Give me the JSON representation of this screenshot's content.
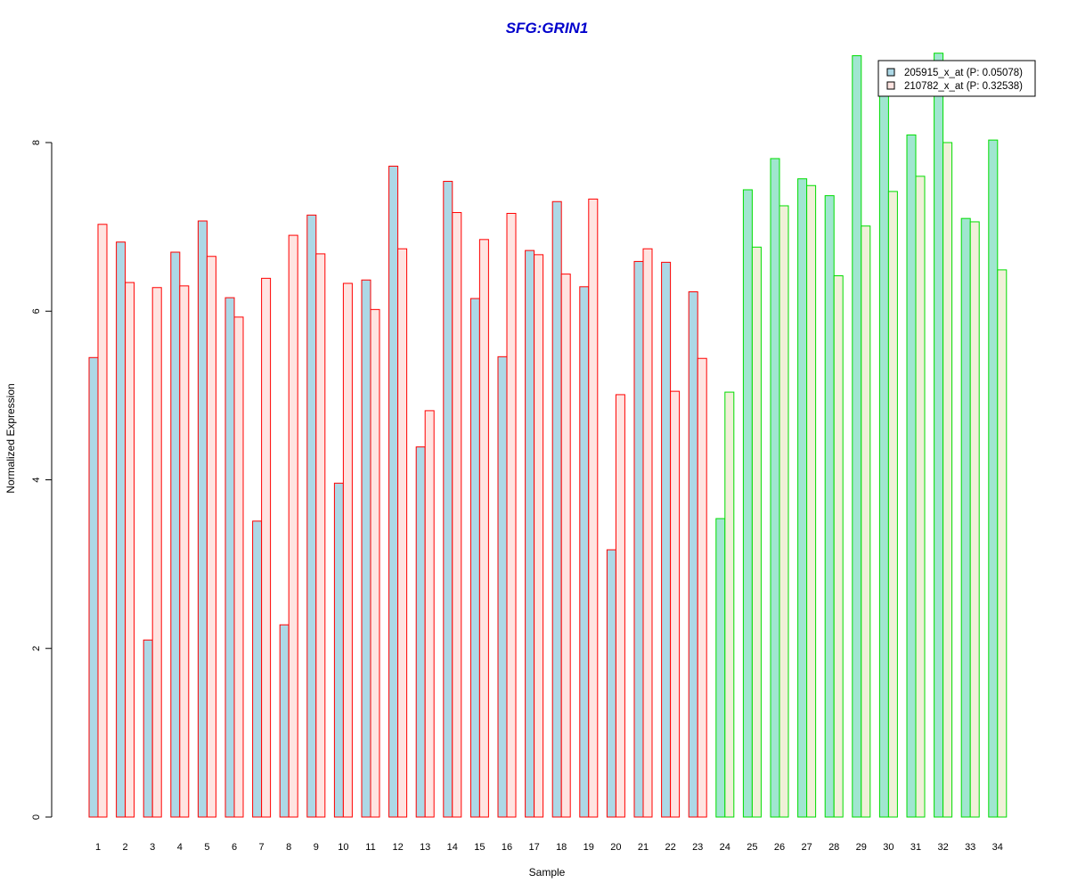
{
  "chart_data": {
    "type": "bar",
    "title": "SFG:GRIN1",
    "xlabel": "Sample",
    "ylabel": "Normalized Expression",
    "ylim": [
      0,
      9.2
    ],
    "yticks": [
      "0",
      "2",
      "4",
      "6",
      "8"
    ],
    "categories": [
      "1",
      "2",
      "3",
      "4",
      "5",
      "6",
      "7",
      "8",
      "9",
      "10",
      "11",
      "12",
      "13",
      "14",
      "15",
      "16",
      "17",
      "18",
      "19",
      "20",
      "21",
      "22",
      "23",
      "24",
      "25",
      "26",
      "27",
      "28",
      "29",
      "30",
      "31",
      "32",
      "33",
      "34"
    ],
    "series": [
      {
        "name": "205915_x_at (P: 0.05078)",
        "values": [
          5.45,
          6.82,
          2.1,
          6.7,
          7.07,
          6.16,
          3.51,
          2.28,
          7.14,
          3.96,
          6.37,
          7.72,
          4.39,
          7.54,
          6.15,
          5.46,
          6.72,
          7.3,
          6.29,
          3.17,
          6.59,
          6.58,
          6.23,
          3.54,
          7.44,
          7.81,
          7.57,
          7.37,
          9.03,
          8.58,
          8.09,
          9.06,
          7.1,
          8.03
        ]
      },
      {
        "name": "210782_x_at (P: 0.32538)",
        "values": [
          7.03,
          6.34,
          6.28,
          6.3,
          6.65,
          5.93,
          6.39,
          6.9,
          6.68,
          6.33,
          6.02,
          6.74,
          4.82,
          7.17,
          6.85,
          7.16,
          6.67,
          6.44,
          7.33,
          5.01,
          6.74,
          5.05,
          5.44,
          5.04,
          6.76,
          7.25,
          7.49,
          6.42,
          7.01,
          7.42,
          7.6,
          8.0,
          7.06,
          6.49
        ]
      }
    ],
    "groups": [
      {
        "from": 1,
        "to": 23,
        "border": "#ff0000"
      },
      {
        "from": 24,
        "to": 34,
        "border": "#00dd00"
      }
    ],
    "colors": {
      "title": "#0000cc",
      "group1_series1_fill": "#add8e6",
      "group1_series2_fill": "#ffe4e1",
      "group2_series1_fill": "#a0e6d0",
      "group2_series2_fill": "#f0f0d8",
      "axis": "#000000"
    },
    "grid": false,
    "legend_position": "top-right"
  }
}
